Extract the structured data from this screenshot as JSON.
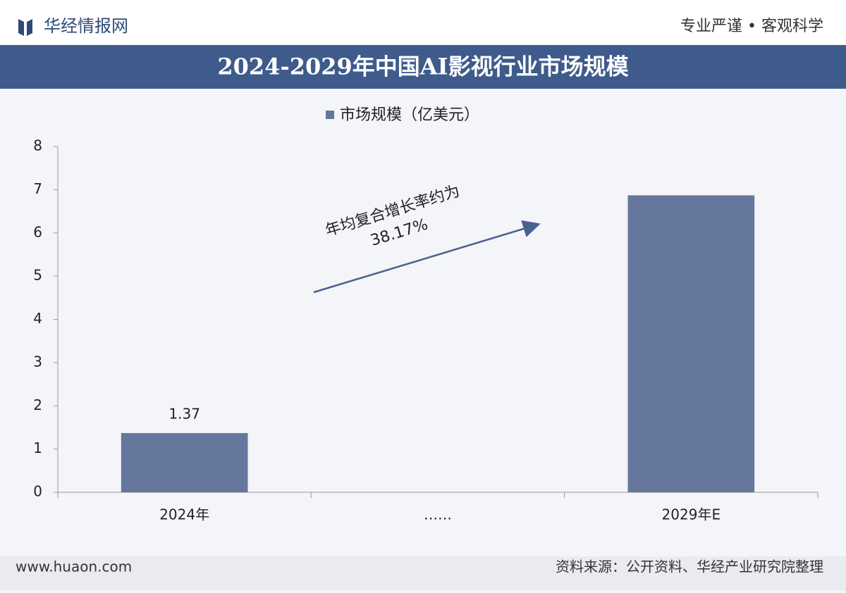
{
  "header": {
    "brand": "华经情报网",
    "slogan": "专业严谨 • 客观科学"
  },
  "chart_data": {
    "type": "bar",
    "title": "2024-2029年中国AI影视行业市场规模",
    "categories": [
      "2024年",
      "……",
      "2029年E"
    ],
    "series": [
      {
        "name": "市场规模（亿美元）",
        "color": "#66779e",
        "values": [
          1.37,
          null,
          6.87
        ],
        "value_labels": [
          "1.37",
          null,
          null
        ]
      }
    ],
    "ylim": [
      0,
      8
    ],
    "yticks": [
      0,
      1,
      2,
      3,
      4,
      5,
      6,
      7,
      8
    ],
    "grid": false,
    "legend": "top",
    "annotation": [
      "年均复合增长率约为",
      "38.17%"
    ]
  },
  "footer": {
    "website": "www.huaon.com",
    "source": "资料来源：公开资料、华经产业研究院整理"
  }
}
